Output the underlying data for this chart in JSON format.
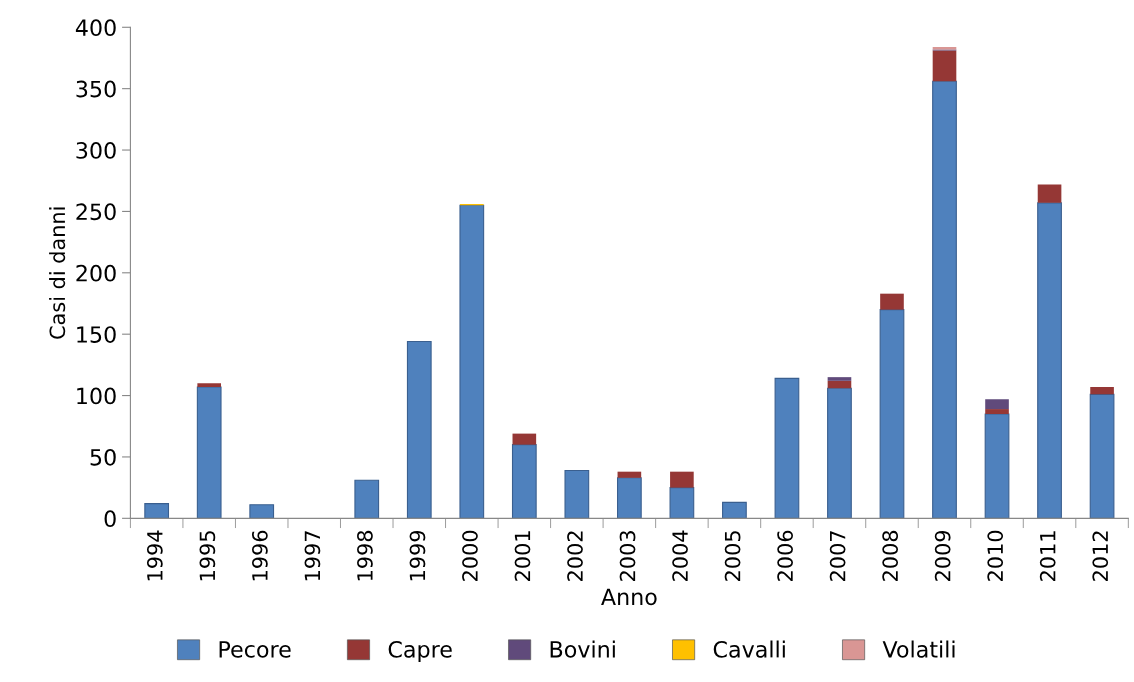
{
  "chart_data": {
    "type": "bar",
    "stacked": true,
    "xlabel": "Anno",
    "ylabel": "Casi di danni",
    "categories": [
      "1994",
      "1995",
      "1996",
      "1997",
      "1998",
      "1999",
      "2000",
      "2001",
      "2002",
      "2003",
      "2004",
      "2005",
      "2006",
      "2007",
      "2008",
      "2009",
      "2010",
      "2011",
      "2012"
    ],
    "series": [
      {
        "name": "Pecore",
        "color": "#4f81bd",
        "values": [
          12,
          107,
          11,
          0,
          31,
          144,
          255,
          60,
          39,
          33,
          25,
          13,
          114,
          106,
          170,
          356,
          85,
          257,
          101
        ]
      },
      {
        "name": "Capre",
        "color": "#953735",
        "values": [
          null,
          3,
          null,
          null,
          null,
          null,
          null,
          9,
          null,
          5,
          13,
          null,
          null,
          6,
          13,
          25,
          4,
          15,
          6
        ]
      },
      {
        "name": "Bovini",
        "color": "#604a7b",
        "values": [
          null,
          null,
          null,
          null,
          null,
          null,
          null,
          null,
          null,
          null,
          null,
          null,
          null,
          3,
          null,
          1,
          8,
          null,
          null
        ]
      },
      {
        "name": "Cavalli",
        "color": "#ffc000",
        "values": [
          null,
          null,
          null,
          null,
          null,
          null,
          1,
          null,
          null,
          null,
          null,
          null,
          null,
          null,
          null,
          null,
          null,
          null,
          null
        ]
      },
      {
        "name": "Volatili",
        "color": "#d99694",
        "values": [
          null,
          null,
          null,
          null,
          null,
          null,
          null,
          null,
          null,
          null,
          null,
          null,
          null,
          null,
          null,
          2,
          null,
          null,
          null
        ]
      }
    ],
    "ylim": [
      0,
      400
    ],
    "yticks": [
      0,
      50,
      100,
      150,
      200,
      250,
      300,
      350,
      400
    ],
    "grid": false,
    "legend": "bottom"
  }
}
